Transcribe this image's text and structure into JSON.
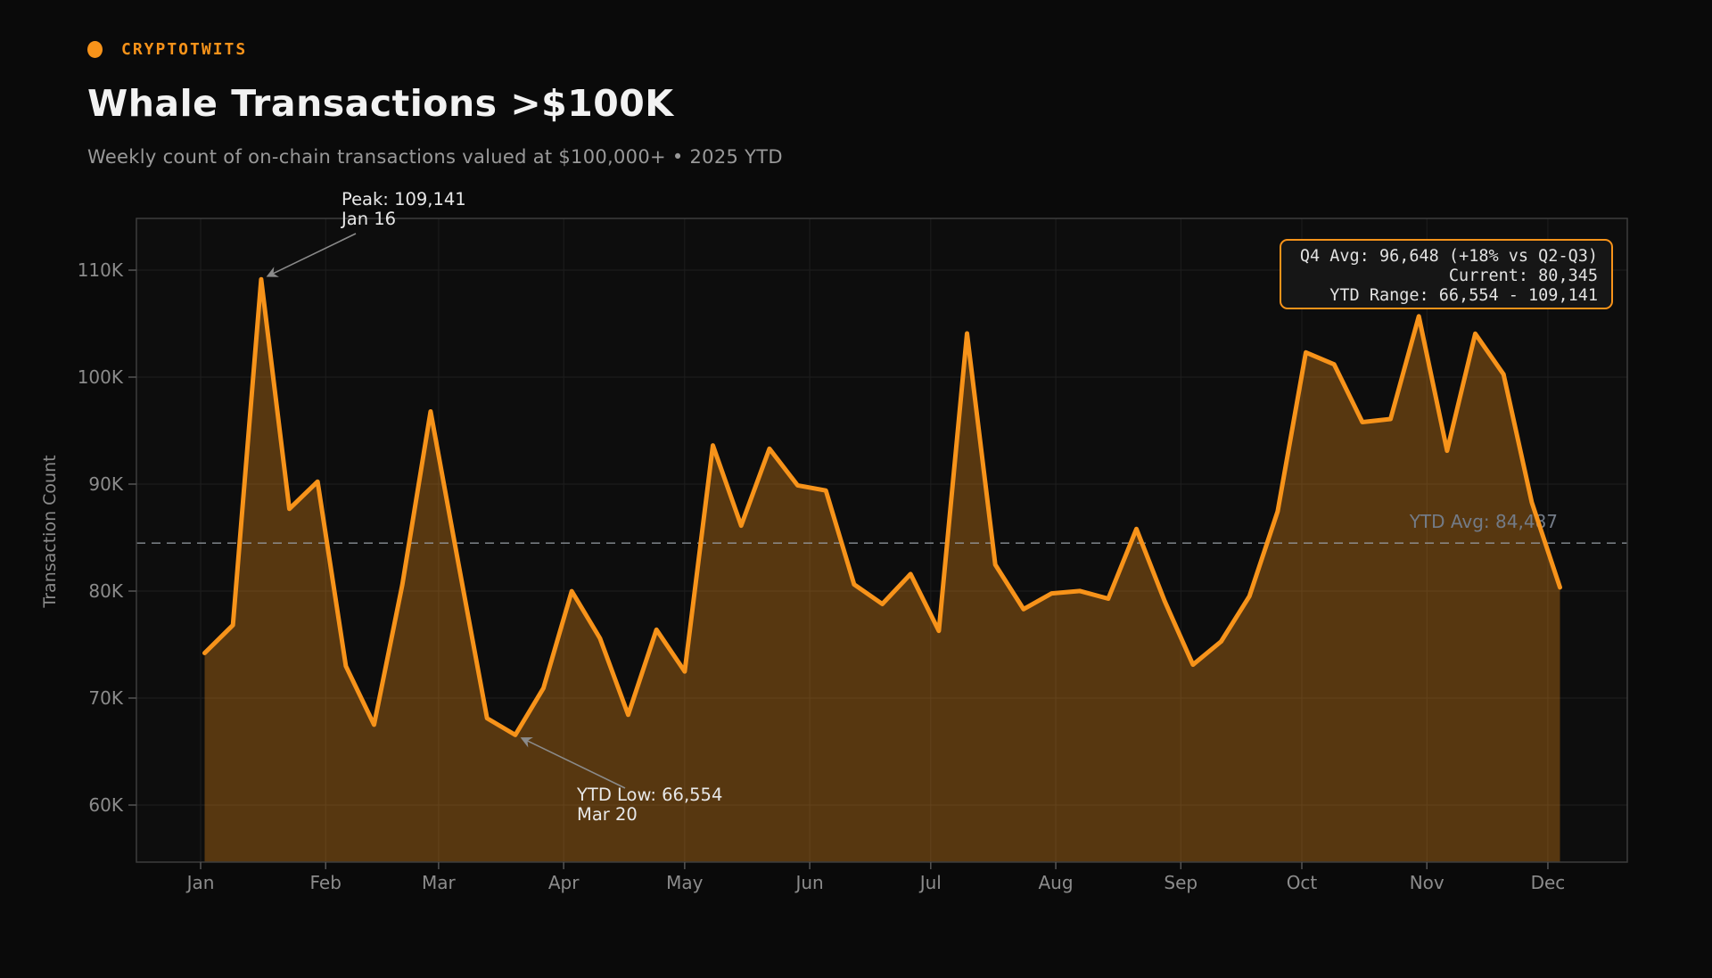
{
  "brand": {
    "name": "CRYPTOTWITS",
    "dot_color": "#f7931a"
  },
  "header": {
    "title": "Whale Transactions >$100K",
    "subtitle": "Weekly count of on-chain transactions valued at $100,000+ • 2025 YTD"
  },
  "colors": {
    "background": "#0a0a0a",
    "plot_background": "#0d0d0d",
    "grid": "#1e1e1e",
    "frame": "#3d3d3d",
    "tick": "#555555",
    "axis_text": "#8c8c8c",
    "series": "#f7931a",
    "annotation_text": "#e8e8e8",
    "arrow": "#8a8a8a",
    "avg_line": "#9aa0a8",
    "avg_label": "#737b87",
    "stats_box_bg": "#161616",
    "stats_box_border": "#f7931a",
    "stats_box_text": "#e2e2e2"
  },
  "chart_data": {
    "type": "area",
    "title": "Whale Transactions >$100K",
    "xlabel": "",
    "ylabel": "Transaction Count",
    "x_tick_labels": [
      "Jan",
      "Feb",
      "Mar",
      "Apr",
      "May",
      "Jun",
      "Jul",
      "Aug",
      "Sep",
      "Oct",
      "Nov",
      "Dec"
    ],
    "y_ticks": [
      {
        "label": "110K",
        "value": 110000
      },
      {
        "label": "100K",
        "value": 100000
      },
      {
        "label": "90K",
        "value": 90000
      },
      {
        "label": "80K",
        "value": 80000
      },
      {
        "label": "70K",
        "value": 70000
      },
      {
        "label": "60K",
        "value": 60000
      }
    ],
    "ylim": [
      54500,
      114800
    ],
    "grid": true,
    "legend": "none",
    "series_color": "#f7931a",
    "fill_opacity": 0.32,
    "avg_line": {
      "label": "YTD Avg: 84,487",
      "value": 84487,
      "style": "dashed"
    },
    "annotations": [
      {
        "line1": "Peak: 109,141",
        "line2": "Jan 16",
        "point_date": "Jan 16",
        "point_value": 109141
      },
      {
        "line1": "YTD Low: 66,554",
        "line2": "Mar 20",
        "point_date": "Mar 20",
        "point_value": 66554
      }
    ],
    "stats_box": {
      "lines": [
        "Q4 Avg: 96,648 (+18% vs Q2-Q3)",
        "Current: 80,345",
        "YTD Range: 66,554 - 109,141"
      ]
    },
    "weeks": [
      {
        "date": "Jan 2",
        "value": 74210
      },
      {
        "date": "Jan 9",
        "value": 76820
      },
      {
        "date": "Jan 16",
        "value": 109141
      },
      {
        "date": "Jan 23",
        "value": 87680
      },
      {
        "date": "Jan 30",
        "value": 90230
      },
      {
        "date": "Feb 6",
        "value": 72980
      },
      {
        "date": "Feb 13",
        "value": 67510
      },
      {
        "date": "Feb 20",
        "value": 80590
      },
      {
        "date": "Feb 27",
        "value": 96790
      },
      {
        "date": "Mar 6",
        "value": 82400
      },
      {
        "date": "Mar 13",
        "value": 68120
      },
      {
        "date": "Mar 20",
        "value": 66554
      },
      {
        "date": "Mar 27",
        "value": 70930
      },
      {
        "date": "Apr 3",
        "value": 79990
      },
      {
        "date": "Apr 10",
        "value": 75580
      },
      {
        "date": "Apr 17",
        "value": 68430
      },
      {
        "date": "Apr 24",
        "value": 76390
      },
      {
        "date": "May 1",
        "value": 72480
      },
      {
        "date": "May 8",
        "value": 93620
      },
      {
        "date": "May 15",
        "value": 86120
      },
      {
        "date": "May 22",
        "value": 93310
      },
      {
        "date": "May 29",
        "value": 89880
      },
      {
        "date": "Jun 5",
        "value": 89400
      },
      {
        "date": "Jun 12",
        "value": 80620
      },
      {
        "date": "Jun 19",
        "value": 78790
      },
      {
        "date": "Jun 26",
        "value": 81590
      },
      {
        "date": "Jul 3",
        "value": 76280
      },
      {
        "date": "Jul 10",
        "value": 104080
      },
      {
        "date": "Jul 17",
        "value": 82470
      },
      {
        "date": "Jul 24",
        "value": 78310
      },
      {
        "date": "Jul 31",
        "value": 79780
      },
      {
        "date": "Aug 7",
        "value": 80010
      },
      {
        "date": "Aug 14",
        "value": 79290
      },
      {
        "date": "Aug 21",
        "value": 85810
      },
      {
        "date": "Aug 28",
        "value": 79060
      },
      {
        "date": "Sep 4",
        "value": 73120
      },
      {
        "date": "Sep 11",
        "value": 75290
      },
      {
        "date": "Sep 18",
        "value": 79520
      },
      {
        "date": "Sep 25",
        "value": 87450
      },
      {
        "date": "Oct 2",
        "value": 102310
      },
      {
        "date": "Oct 9",
        "value": 101190
      },
      {
        "date": "Oct 16",
        "value": 95790
      },
      {
        "date": "Oct 23",
        "value": 96080
      },
      {
        "date": "Oct 30",
        "value": 105680
      },
      {
        "date": "Nov 6",
        "value": 93120
      },
      {
        "date": "Nov 13",
        "value": 104060
      },
      {
        "date": "Nov 20",
        "value": 100270
      },
      {
        "date": "Nov 27",
        "value": 88290
      },
      {
        "date": "Dec 4",
        "value": 80345
      }
    ]
  }
}
